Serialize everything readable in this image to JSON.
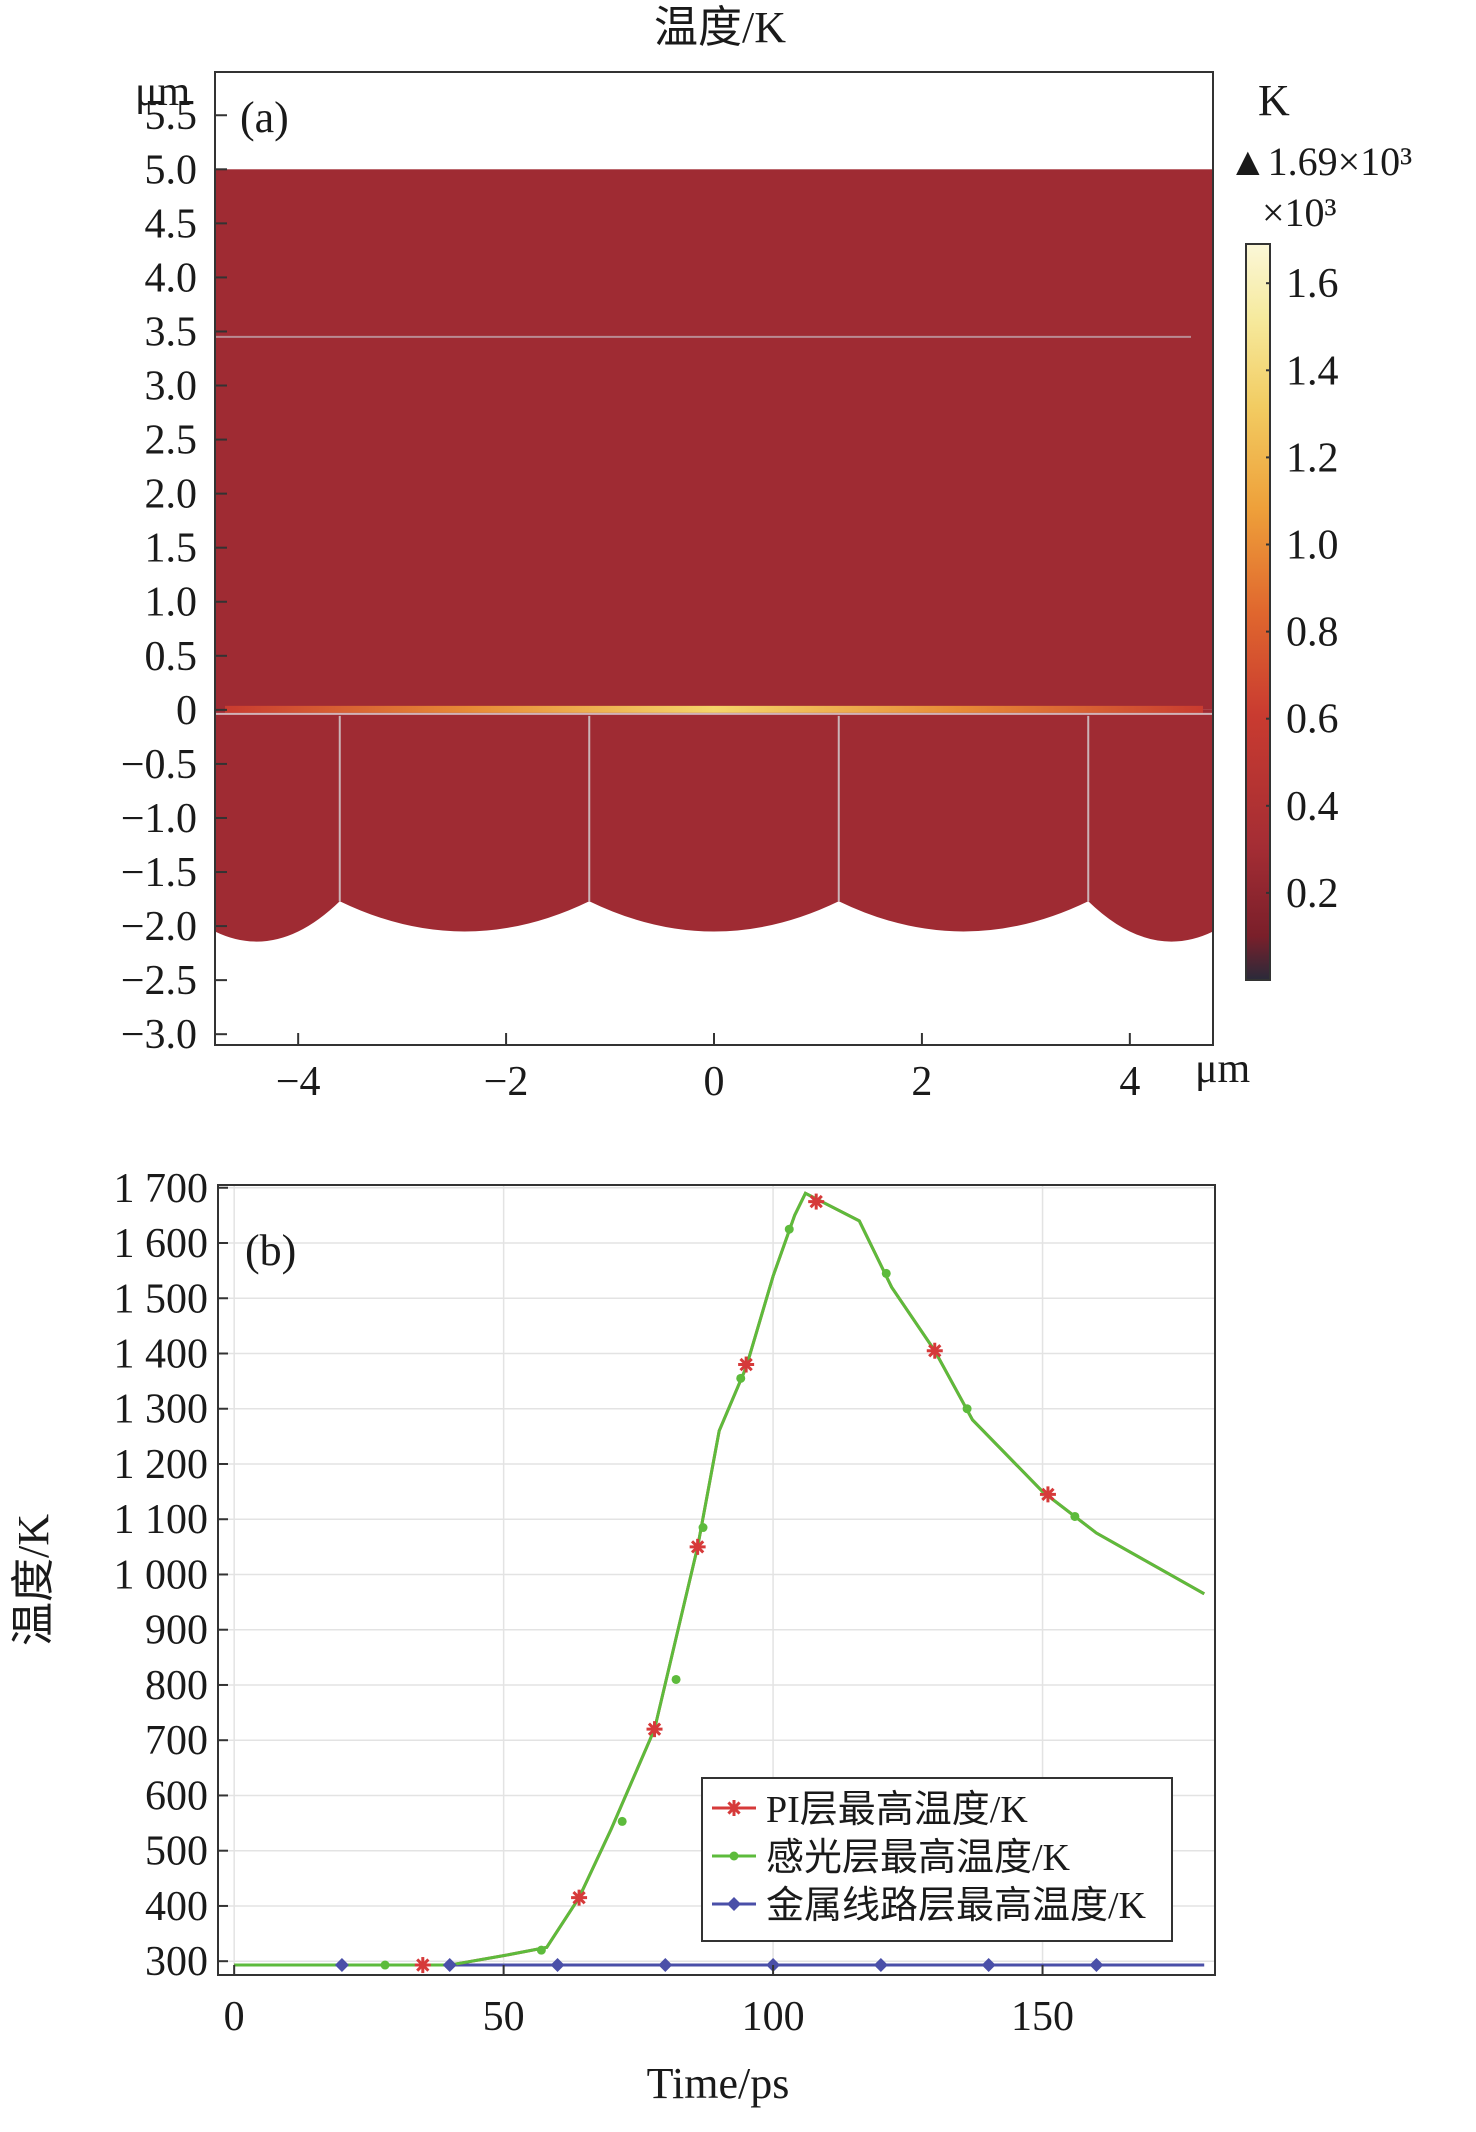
{
  "chart_data": [
    {
      "type": "heatmap",
      "title": "温度/K",
      "panel_label": "(a)",
      "x_unit": "μm",
      "y_unit": "μm",
      "xlim": [
        -4.8,
        4.8
      ],
      "ylim": [
        -3.1,
        5.9
      ],
      "xticks": [
        -4,
        -2,
        0,
        2,
        4
      ],
      "xtick_labels": [
        "−4",
        "−2",
        "0",
        "2",
        "4"
      ],
      "yticks": [
        5.5,
        5.0,
        4.5,
        4.0,
        3.5,
        3.0,
        2.5,
        2.0,
        1.5,
        1.0,
        0.5,
        0,
        -0.5,
        -1.0,
        -1.5,
        -2.0,
        -2.5,
        -3.0
      ],
      "ytick_labels": [
        "5.5",
        "5.0",
        "4.5",
        "4.0",
        "3.5",
        "3.0",
        "2.5",
        "2.0",
        "1.5",
        "1.0",
        "0.5",
        "0",
        "−0.5",
        "−1.0",
        "−1.5",
        "−2.0",
        "−2.5",
        "−3.0"
      ],
      "layers": {
        "pi_layer_top": 5.0,
        "interface_line": 3.45,
        "heated_interface": 0,
        "metal_bottom_min": -2.05,
        "metal_bottom_peaks": -1.77,
        "vertical_lines_x": [
          -3.6,
          -1.2,
          1.2,
          3.6
        ]
      },
      "colorbar": {
        "unit": "K",
        "max_label": "▲1.69×10³",
        "multiplier": "×10³",
        "range": [
          0.0,
          1.69
        ],
        "ticks": [
          1.6,
          1.4,
          1.2,
          1.0,
          0.8,
          0.6,
          0.4,
          0.2
        ],
        "tick_labels": [
          "1.6",
          "1.4",
          "1.2",
          "1.0",
          "0.8",
          "0.6",
          "0.4",
          "0.2"
        ],
        "colors": [
          "#2a2a3a",
          "#7a1f2a",
          "#a42d34",
          "#c93b30",
          "#e0672e",
          "#eea03a",
          "#f2cc62",
          "#f6ea9e",
          "#fbf7d8"
        ]
      },
      "field_color": "#9f2b33"
    },
    {
      "type": "line",
      "panel_label": "(b)",
      "xlabel": "Time/ps",
      "ylabel": "温度/K",
      "xlim": [
        -3,
        182
      ],
      "ylim": [
        275,
        1705
      ],
      "xticks": [
        0,
        50,
        100,
        150
      ],
      "xtick_labels": [
        "0",
        "50",
        "100",
        "150"
      ],
      "yticks": [
        300,
        400,
        500,
        600,
        700,
        800,
        900,
        1000,
        1100,
        1200,
        1300,
        1400,
        1500,
        1600,
        1700
      ],
      "ytick_labels": [
        "300",
        "400",
        "500",
        "600",
        "700",
        "800",
        "900",
        "1 000",
        "1 100",
        "1 200",
        "1 300",
        "1 400",
        "1 500",
        "1 600",
        "1 700"
      ],
      "grid": true,
      "legend_position": "bottom-right",
      "series": [
        {
          "name": "PI层最高温度/K",
          "color": "#d63a3a",
          "marker": "asterisk",
          "x": [
            0,
            20,
            35,
            40,
            50,
            58,
            64,
            70,
            78,
            86,
            90,
            95,
            100,
            104,
            106,
            108,
            116,
            122,
            130,
            137,
            150,
            160,
            170,
            180
          ],
          "y": [
            293,
            293,
            293,
            293,
            310,
            325,
            415,
            540,
            720,
            1050,
            1260,
            1375,
            1540,
            1650,
            1690,
            1680,
            1640,
            1520,
            1405,
            1280,
            1150,
            1075,
            1020,
            965
          ],
          "marker_x": [
            35,
            64,
            78,
            86,
            95,
            108,
            130,
            151
          ],
          "marker_y": [
            293,
            415,
            720,
            1050,
            1380,
            1675,
            1405,
            1145
          ]
        },
        {
          "name": "感光层最高温度/K",
          "color": "#5dbb3c",
          "marker": "plus",
          "x": [
            0,
            20,
            35,
            40,
            50,
            58,
            64,
            70,
            78,
            86,
            90,
            95,
            100,
            104,
            106,
            108,
            116,
            122,
            130,
            137,
            150,
            160,
            170,
            180
          ],
          "y": [
            293,
            293,
            293,
            293,
            310,
            325,
            415,
            540,
            720,
            1050,
            1260,
            1375,
            1540,
            1650,
            1690,
            1680,
            1640,
            1520,
            1405,
            1280,
            1150,
            1075,
            1020,
            965
          ],
          "marker_x": [
            28,
            57,
            72,
            82,
            87,
            94,
            103,
            121,
            136,
            156
          ],
          "marker_y": [
            293,
            320,
            553,
            810,
            1085,
            1355,
            1625,
            1545,
            1300,
            1105
          ]
        },
        {
          "name": "金属线路层最高温度/K",
          "color": "#4a4fa8",
          "marker": "diamond",
          "x": [
            0,
            180
          ],
          "y": [
            293,
            293
          ],
          "marker_x": [
            20,
            40,
            60,
            80,
            100,
            120,
            140,
            160
          ],
          "marker_y": [
            293,
            293,
            293,
            293,
            293,
            293,
            293,
            293
          ]
        }
      ]
    }
  ]
}
